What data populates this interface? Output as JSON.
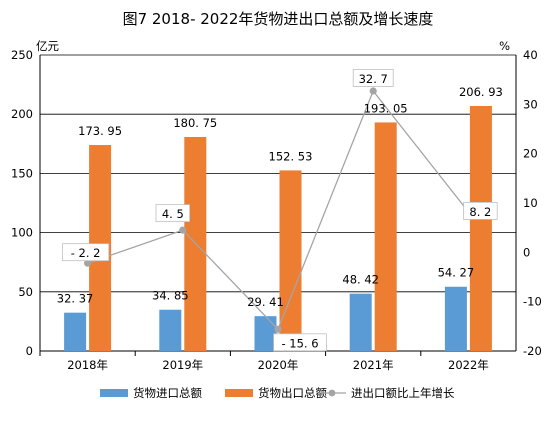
{
  "chart_data": {
    "type": "bar",
    "title": "图7 2018- 2022年货物进出口总额及增长速度",
    "categories": [
      "2018年",
      "2019年",
      "2020年",
      "2021年",
      "2022年"
    ],
    "y_left": {
      "unit": "亿元",
      "range": [
        0,
        250
      ],
      "ticks": [
        "0",
        "50",
        "100",
        "150",
        "200",
        "250"
      ]
    },
    "y_right": {
      "unit": "%",
      "range": [
        -20,
        40
      ],
      "ticks": [
        "-20",
        "-10",
        "0",
        "10",
        "20",
        "30",
        "40"
      ]
    },
    "grid": true,
    "legend_position": "bottom",
    "series": [
      {
        "name": "货物进口总额",
        "kind": "bar",
        "axis": "left",
        "color": "#5b9bd5",
        "values": [
          32.37,
          34.85,
          29.41,
          48.42,
          54.27
        ],
        "labels": [
          "32. 37",
          "34. 85",
          "29. 41",
          "48. 42",
          "54. 27"
        ]
      },
      {
        "name": "货物出口总额",
        "kind": "bar",
        "axis": "left",
        "color": "#ed7d31",
        "values": [
          173.95,
          180.75,
          152.53,
          193.05,
          206.93
        ],
        "labels": [
          "173. 95",
          "180. 75",
          "152. 53",
          "193. 05",
          "206. 93"
        ]
      },
      {
        "name": "进出口额比上年增长",
        "kind": "line",
        "axis": "right",
        "color": "#a5a5a5",
        "values": [
          -2.2,
          4.5,
          -15.6,
          32.7,
          8.2
        ],
        "labels": [
          "- 2. 2",
          "4. 5",
          "- 15. 6",
          "32. 7",
          "8. 2"
        ]
      }
    ]
  }
}
